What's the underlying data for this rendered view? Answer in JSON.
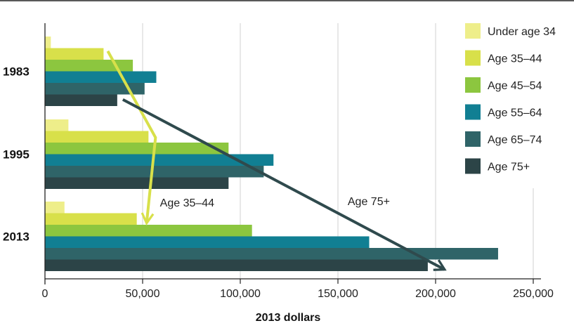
{
  "chart_data": {
    "type": "bar",
    "orientation": "horizontal",
    "categories": [
      "1983",
      "1995",
      "2013"
    ],
    "series": [
      {
        "name": "Under age 34",
        "color": "#eeee8a",
        "values": [
          3000,
          12000,
          10000
        ]
      },
      {
        "name": "Age 35–44",
        "color": "#d8e04a",
        "values": [
          30000,
          53000,
          47000
        ]
      },
      {
        "name": "Age 45–54",
        "color": "#8cc63f",
        "values": [
          45000,
          94000,
          106000
        ]
      },
      {
        "name": "Age 55–64",
        "color": "#117f93",
        "values": [
          57000,
          117000,
          166000
        ]
      },
      {
        "name": "Age 65–74",
        "color": "#2f6468",
        "values": [
          51000,
          112000,
          232000
        ]
      },
      {
        "name": "Age 75+",
        "color": "#2c4447",
        "values": [
          37000,
          94000,
          196000
        ]
      }
    ],
    "xlabel": "2013 dollars",
    "xlim": [
      0,
      250000
    ],
    "xticks": [
      {
        "value": 0,
        "label": "0"
      },
      {
        "value": 50000,
        "label": "50,000"
      },
      {
        "value": 100000,
        "label": "100,000"
      },
      {
        "value": 150000,
        "label": "150,000"
      },
      {
        "value": 200000,
        "label": "200,000"
      },
      {
        "value": 250000,
        "label": "250,000"
      }
    ],
    "grid": "vertical",
    "legend": "top-right",
    "annotations": [
      {
        "label": "Age 35–44",
        "color": "#d8e04a",
        "series": "Age 35–44"
      },
      {
        "label": "Age 75+",
        "color": "#2f4a4d",
        "series": "Age 75+"
      }
    ]
  }
}
